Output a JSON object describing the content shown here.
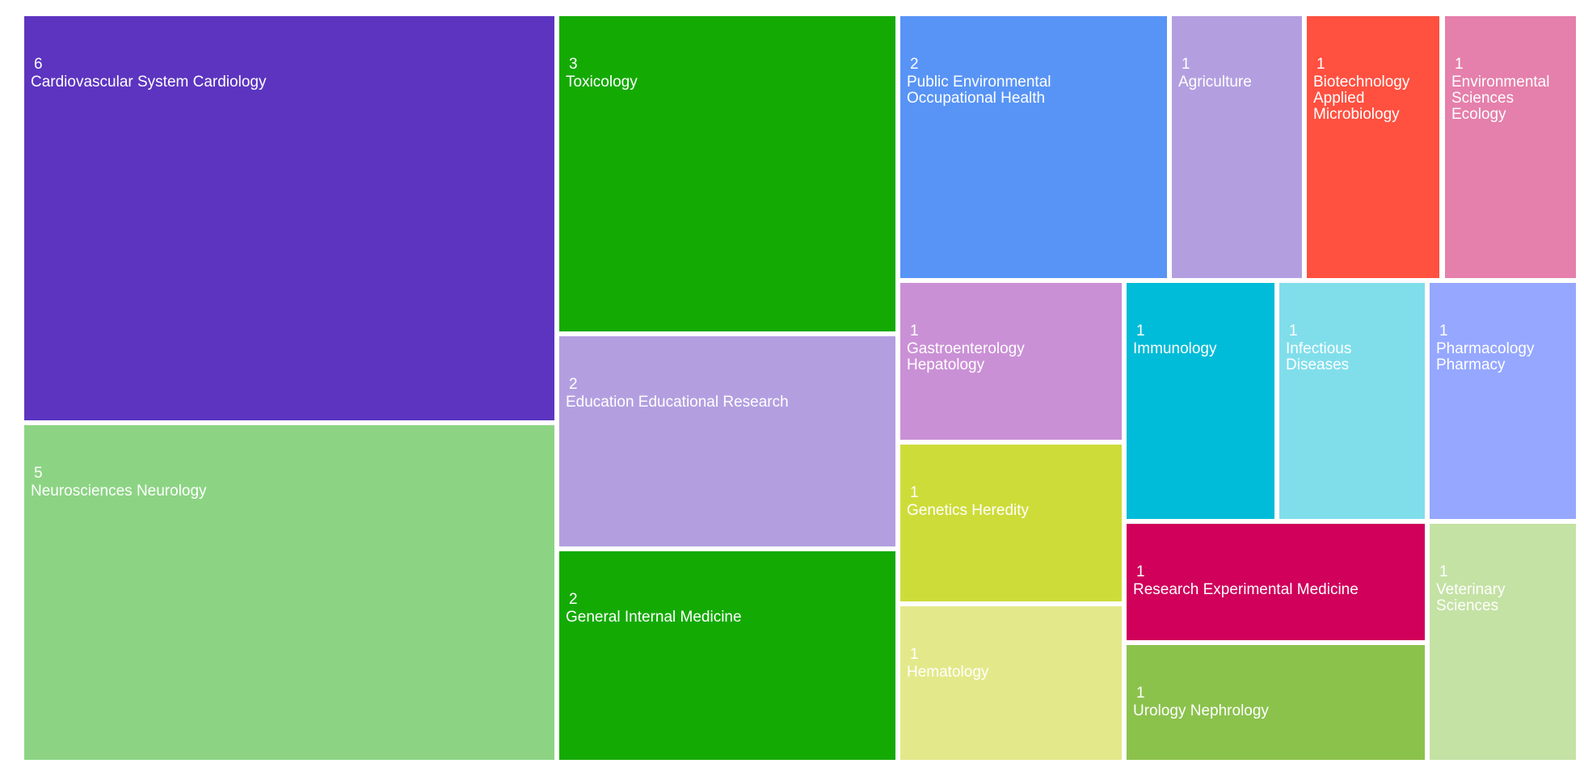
{
  "chart_data": {
    "type": "treemap",
    "title": "",
    "value_label": "",
    "items": [
      {
        "label": "Cardiovascular System Cardiology",
        "value": 6,
        "color": "#5c34c0"
      },
      {
        "label": "Neurosciences Neurology",
        "value": 5,
        "color": "#8cd484"
      },
      {
        "label": "Toxicology",
        "value": 3,
        "color": "#14aa04"
      },
      {
        "label": "Education Educational Research",
        "value": 2,
        "color": "#b39fe0"
      },
      {
        "label": "General Internal Medicine",
        "value": 2,
        "color": "#14aa04"
      },
      {
        "label": "Public Environmental Occupational Health",
        "value": 2,
        "color": "#5894f6"
      },
      {
        "label": "Agriculture",
        "value": 1,
        "color": "#b39fe0"
      },
      {
        "label": "Biotechnology Applied Microbiology",
        "value": 1,
        "color": "#ff5040"
      },
      {
        "label": "Environmental Sciences Ecology",
        "value": 1,
        "color": "#e57fab"
      },
      {
        "label": "Gastroenterology Hepatology",
        "value": 1,
        "color": "#ca90d6"
      },
      {
        "label": "Genetics Heredity",
        "value": 1,
        "color": "#cedc3a"
      },
      {
        "label": "Hematology",
        "value": 1,
        "color": "#e3e98a"
      },
      {
        "label": "Immunology",
        "value": 1,
        "color": "#00bcd8"
      },
      {
        "label": "Infectious Diseases",
        "value": 1,
        "color": "#80deeb"
      },
      {
        "label": "Pharmacology Pharmacy",
        "value": 1,
        "color": "#95a7ff"
      },
      {
        "label": "Research Experimental Medicine",
        "value": 1,
        "color": "#d0005b"
      },
      {
        "label": "Urology Nephrology",
        "value": 1,
        "color": "#8bc24c"
      },
      {
        "label": "Veterinary Sciences",
        "value": 1,
        "color": "#c4e2a4"
      }
    ]
  }
}
